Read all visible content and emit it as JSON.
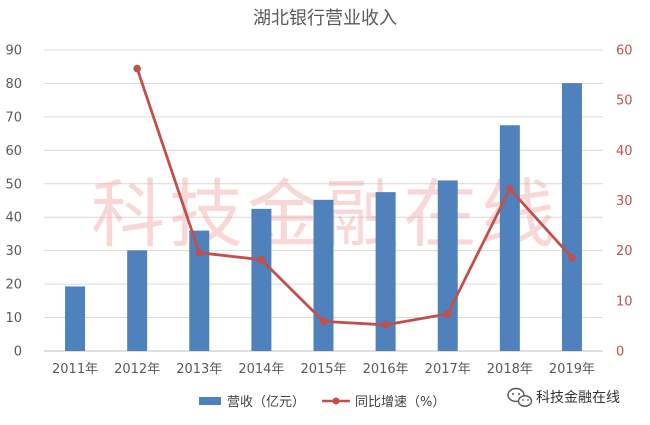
{
  "watermark": "科技金融在线",
  "logo": {
    "text": "科技金融在线",
    "icon": "wechat-icon"
  },
  "colors": {
    "bar": "#4f81bd",
    "line": "#c0504d",
    "grid": "#d9d9d9",
    "axis": "#bfbfbf",
    "text": "#595959"
  },
  "chart_data": {
    "type": "bar",
    "title": "湖北银行营业收入",
    "categories": [
      "2011年",
      "2012年",
      "2013年",
      "2014年",
      "2015年",
      "2016年",
      "2017年",
      "2018年",
      "2019年"
    ],
    "ylim": [
      0,
      90
    ],
    "y_ticks": [
      0,
      10,
      20,
      30,
      40,
      50,
      60,
      70,
      80,
      90
    ],
    "y2lim": [
      0,
      60
    ],
    "y2_ticks": [
      0,
      10,
      20,
      30,
      40,
      50,
      60
    ],
    "grid": true,
    "legend_position": "bottom",
    "series": [
      {
        "name": "营收（亿元）",
        "type": "bar",
        "axis": "left",
        "values": [
          19.3,
          30.1,
          36.0,
          42.5,
          45.2,
          47.5,
          51.0,
          67.5,
          80.1
        ]
      },
      {
        "name": "同比增速（%）",
        "type": "line",
        "axis": "right",
        "values": [
          null,
          56.3,
          19.6,
          18.2,
          5.9,
          5.2,
          7.4,
          32.3,
          18.6
        ]
      }
    ]
  }
}
